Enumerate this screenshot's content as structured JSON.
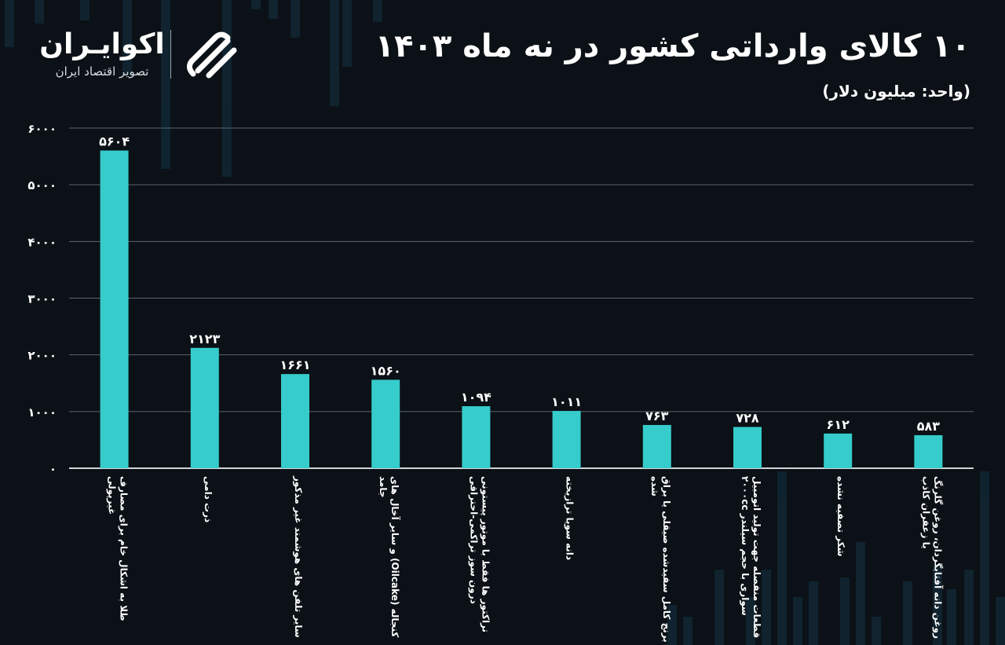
{
  "header": {
    "title": "۱۰ کالای وارداتی کشور در نه ماه ۱۴۰۳",
    "subtitle": "(واحد: میلیون دلار)"
  },
  "logo": {
    "name": "اکوایـران",
    "tagline": "تصویر اقتصاد ایران",
    "mark_icon": "ecoiran-swirl-icon"
  },
  "colors": {
    "background": "#0b1116",
    "bar": "#36cccb",
    "text": "#ffffff",
    "grid": "#5a6470"
  },
  "chart_data": {
    "type": "bar",
    "categories": [
      "طلا به اشکال خام برای مصارف غیرپولی",
      "ذرت دامی",
      "سایر تلفن های هوشمند غیر مذکور",
      "کنجاله (Oilcake) و سایر آخال های جامد",
      "تراکتور ها فقط با موتور پیستونی درون سوز تراکمی-احتراقی",
      "دانه سویا ترازیخته",
      "برنج کامل سفیدشده صیقلی یا براق شده",
      "قطعات منفصله جهت تولید اتومبیل سواری با حجم سیلندر ۲۰۰۰cc",
      "شکر تصفیه نشده",
      "روغن دانه آفتابگردان، روغن گلرنگ یا زعفران کاذب"
    ],
    "values": [
      5604,
      2123,
      1661,
      1560,
      1094,
      1011,
      763,
      728,
      612,
      583
    ],
    "value_labels": [
      "۵۶۰۴",
      "۲۱۲۳",
      "۱۶۶۱",
      "۱۵۶۰",
      "۱۰۹۴",
      "۱۰۱۱",
      "۷۶۳",
      "۷۲۸",
      "۶۱۲",
      "۵۸۳"
    ],
    "yticks": [
      0,
      1000,
      2000,
      3000,
      4000,
      5000,
      6000
    ],
    "ytick_labels": [
      "۰",
      "۱۰۰۰",
      "۲۰۰۰",
      "۳۰۰۰",
      "۴۰۰۰",
      "۵۰۰۰",
      "۶۰۰۰"
    ],
    "ylim": [
      0,
      6000
    ],
    "grid": true,
    "legend": "none"
  }
}
